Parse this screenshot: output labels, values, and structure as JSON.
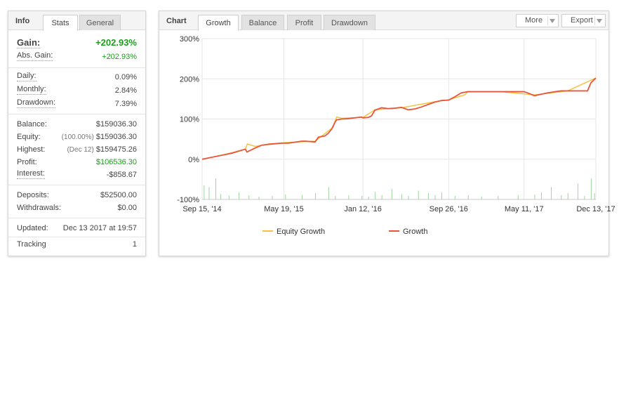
{
  "info_panel": {
    "title": "Info",
    "tabs": [
      {
        "label": "Stats",
        "active": true
      },
      {
        "label": "General",
        "active": false
      }
    ],
    "gain": {
      "label": "Gain:",
      "value": "+202.93%"
    },
    "abs_gain": {
      "label": "Abs. Gain:",
      "value": "+202.93%"
    },
    "daily": {
      "label": "Daily:",
      "value": "0.09%"
    },
    "monthly": {
      "label": "Monthly:",
      "value": "2.84%"
    },
    "drawdown": {
      "label": "Drawdown:",
      "value": "7.39%"
    },
    "balance": {
      "label": "Balance:",
      "value": "$159036.30"
    },
    "equity": {
      "label": "Equity:",
      "note": "(100.00%)",
      "value": "$159036.30"
    },
    "highest": {
      "label": "Highest:",
      "note": "(Dec 12)",
      "value": "$159475.26"
    },
    "profit": {
      "label": "Profit:",
      "value": "$106536.30"
    },
    "interest": {
      "label": "Interest:",
      "value": "-$858.67"
    },
    "deposits": {
      "label": "Deposits:",
      "value": "$52500.00"
    },
    "withdrawals": {
      "label": "Withdrawals:",
      "value": "$0.00"
    },
    "updated": {
      "label": "Updated:",
      "value": "Dec 13 2017 at 19:57"
    },
    "tracking": {
      "label": "Tracking",
      "value": "1"
    }
  },
  "chart_panel": {
    "title": "Chart",
    "tabs": [
      {
        "label": "Growth",
        "active": true
      },
      {
        "label": "Balance",
        "active": false
      },
      {
        "label": "Profit",
        "active": false
      },
      {
        "label": "Drawdown",
        "active": false
      }
    ],
    "more_label": "More",
    "export_label": "Export"
  },
  "colors": {
    "growth": "#e8553a",
    "equity_growth": "#f5c242",
    "volume": "#9ed49e",
    "grid": "#e6e6e6",
    "positive": "#1a9e1a"
  },
  "chart_data": {
    "type": "line",
    "title": "",
    "xlabel": "",
    "ylabel": "",
    "ylim": [
      -100,
      300
    ],
    "y_ticks": [
      "300%",
      "200%",
      "100%",
      "0%",
      "-100%"
    ],
    "y_tick_values": [
      300,
      200,
      100,
      0,
      -100
    ],
    "x_tick_labels": [
      "Sep 15, '14",
      "May 19, '15",
      "Jan 12, '16",
      "Sep 26, '16",
      "May 11, '17",
      "Dec 13, '17"
    ],
    "x_tick_values": [
      0,
      246,
      484,
      742,
      969,
      1185
    ],
    "x_max": 1185,
    "grid": true,
    "legend_position": "bottom",
    "legend": [
      "Equity Growth",
      "Growth"
    ],
    "series": [
      {
        "name": "Growth",
        "x": [
          0,
          30,
          60,
          90,
          110,
          130,
          135,
          160,
          180,
          200,
          240,
          260,
          300,
          310,
          340,
          350,
          370,
          380,
          390,
          400,
          405,
          420,
          440,
          460,
          480,
          484,
          500,
          510,
          520,
          540,
          560,
          580,
          600,
          620,
          640,
          660,
          680,
          700,
          720,
          742,
          760,
          780,
          800,
          850,
          900,
          969,
          980,
          1000,
          1040,
          1070,
          1080,
          1100,
          1130,
          1160,
          1170,
          1185
        ],
        "y": [
          0,
          5,
          10,
          15,
          20,
          25,
          18,
          28,
          35,
          37,
          40,
          40,
          45,
          45,
          43,
          55,
          58,
          65,
          75,
          92,
          98,
          100,
          101,
          103,
          105,
          103,
          104,
          108,
          122,
          128,
          126,
          127,
          129,
          123,
          125,
          130,
          136,
          142,
          146,
          147,
          155,
          165,
          168,
          168,
          168,
          168,
          165,
          158,
          165,
          169,
          170,
          170,
          170,
          170,
          190,
          202
        ]
      },
      {
        "name": "Equity Growth",
        "x": [
          0,
          60,
          130,
          136,
          160,
          200,
          260,
          340,
          395,
          400,
          405,
          420,
          484,
          520,
          600,
          700,
          742,
          790,
          800,
          900,
          1000,
          1100,
          1185
        ],
        "y": [
          0,
          10,
          25,
          38,
          32,
          38,
          42,
          45,
          80,
          95,
          105,
          102,
          104,
          123,
          128,
          143,
          148,
          160,
          168,
          168,
          160,
          170,
          202
        ]
      }
    ],
    "volume_bars": {
      "x": [
        5,
        20,
        40,
        55,
        80,
        110,
        140,
        170,
        210,
        250,
        300,
        340,
        380,
        400,
        440,
        480,
        500,
        520,
        540,
        570,
        600,
        620,
        650,
        680,
        700,
        720,
        760,
        800,
        840,
        890,
        950,
        1000,
        1020,
        1050,
        1080,
        1100,
        1130,
        1150,
        1170,
        1180
      ],
      "height": [
        40,
        35,
        60,
        15,
        10,
        20,
        12,
        8,
        10,
        14,
        12,
        18,
        35,
        10,
        12,
        10,
        8,
        22,
        12,
        30,
        15,
        10,
        25,
        18,
        12,
        20,
        10,
        12,
        8,
        10,
        12,
        14,
        20,
        35,
        12,
        18,
        45,
        10,
        60,
        18
      ]
    }
  }
}
